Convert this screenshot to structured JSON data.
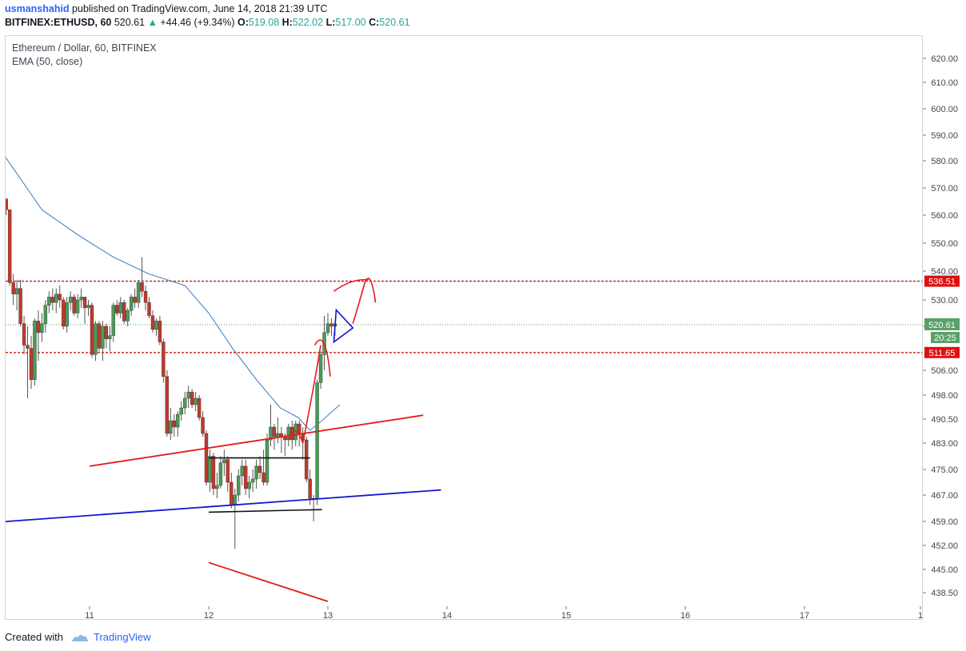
{
  "header": {
    "author": "usmanshahid",
    "published_text": " published on TradingView.com, June 14, 2018 21:39 UTC",
    "symbol": "BITFINEX:ETHUSD, 60",
    "last": "520.61",
    "change": "+44.46 (+9.34%)",
    "open_label": "O:",
    "open": "519.08",
    "high_label": "H:",
    "high": "522.02",
    "low_label": "L:",
    "low": "517.00",
    "close_label": "C:",
    "close": "520.61"
  },
  "legend": {
    "title": "Ethereum / Dollar, 60, BITFINEX",
    "indicator": "EMA (50, close)"
  },
  "footer": {
    "created_with": "Created with",
    "brand": "TradingView"
  },
  "colors": {
    "up": "#4a9a58",
    "down": "#c0392b",
    "ema": "#4a86c5",
    "level": "#e01010",
    "blue_line": "#1515d0",
    "annotation_red": "#e51b1b"
  },
  "chart_data": {
    "type": "candlestick",
    "title": "Ethereum / Dollar, 60, BITFINEX",
    "x_ticks": [
      "11",
      "12",
      "13",
      "14",
      "15",
      "16",
      "17",
      "1"
    ],
    "y_ticks": [
      "620.00",
      "610.00",
      "600.00",
      "590.00",
      "580.00",
      "570.00",
      "560.00",
      "550.00",
      "540.00",
      "530.00",
      "520.00",
      "506.00",
      "498.00",
      "490.50",
      "483.00",
      "475.00",
      "467.00",
      "459.00",
      "452.00",
      "445.00",
      "438.50"
    ],
    "price_range": [
      434,
      626
    ],
    "horizontal_levels": [
      {
        "label": "536.51",
        "value": 536.51
      },
      {
        "label": "511.65",
        "value": 511.65
      }
    ],
    "current_price": {
      "label": "520.61",
      "value": 520.61,
      "countdown": "20:25"
    },
    "candles": [
      [
        10.0,
        570,
        573,
        557,
        560
      ],
      [
        10.03,
        560,
        563,
        557,
        562
      ],
      [
        10.06,
        562,
        567,
        560,
        566
      ],
      [
        10.09,
        566,
        567,
        560,
        563
      ],
      [
        10.12,
        563,
        567,
        559,
        566
      ],
      [
        10.15,
        566,
        568,
        560,
        563
      ],
      [
        10.18,
        563,
        571,
        561,
        569
      ],
      [
        10.21,
        569,
        570,
        565,
        567
      ],
      [
        10.24,
        567,
        569,
        564,
        565
      ],
      [
        10.27,
        565,
        568,
        562,
        566
      ],
      [
        10.3,
        566,
        566,
        560,
        562
      ],
      [
        10.33,
        562,
        562,
        535,
        536
      ],
      [
        10.36,
        536,
        539,
        528,
        532
      ],
      [
        10.39,
        532,
        537,
        526,
        534
      ],
      [
        10.42,
        534,
        537,
        520,
        521
      ],
      [
        10.45,
        521,
        524,
        511,
        514
      ],
      [
        10.48,
        514,
        520,
        497,
        513
      ],
      [
        10.51,
        513,
        517,
        500,
        503
      ],
      [
        10.54,
        503,
        523,
        501,
        522
      ],
      [
        10.57,
        522,
        526,
        509,
        518
      ],
      [
        10.6,
        518,
        525,
        515,
        521
      ],
      [
        10.63,
        521,
        530,
        518,
        528
      ],
      [
        10.66,
        528,
        533,
        525,
        531
      ],
      [
        10.69,
        531,
        534,
        526,
        529
      ],
      [
        10.72,
        529,
        534,
        525,
        532
      ],
      [
        10.75,
        532,
        535,
        527,
        530
      ],
      [
        10.78,
        530,
        531,
        519,
        520
      ],
      [
        10.81,
        520,
        531,
        518,
        529
      ],
      [
        10.84,
        529,
        533,
        526,
        531
      ],
      [
        10.87,
        531,
        532,
        524,
        525
      ],
      [
        10.9,
        525,
        532,
        523,
        530
      ],
      [
        10.93,
        530,
        534,
        527,
        531
      ],
      [
        10.96,
        531,
        531,
        521,
        527
      ],
      [
        10.99,
        527,
        530,
        524,
        528
      ],
      [
        11.02,
        528,
        529,
        510,
        511
      ],
      [
        11.05,
        511,
        522,
        509,
        521
      ],
      [
        11.08,
        521,
        522,
        512,
        513
      ],
      [
        11.11,
        513,
        522,
        509,
        520
      ],
      [
        11.14,
        520,
        521,
        513,
        516
      ],
      [
        11.17,
        516,
        520,
        512,
        517
      ],
      [
        11.2,
        517,
        529,
        515,
        528
      ],
      [
        11.23,
        528,
        530,
        524,
        525
      ],
      [
        11.26,
        525,
        531,
        523,
        529
      ],
      [
        11.29,
        529,
        530,
        521,
        522
      ],
      [
        11.32,
        522,
        527,
        520,
        526
      ],
      [
        11.35,
        526,
        532,
        524,
        531
      ],
      [
        11.38,
        531,
        534,
        527,
        529
      ],
      [
        11.41,
        529,
        537,
        527,
        536
      ],
      [
        11.44,
        536,
        545,
        531,
        533
      ],
      [
        11.47,
        533,
        535,
        526,
        529
      ],
      [
        11.5,
        529,
        531,
        523,
        524
      ],
      [
        11.53,
        524,
        526,
        518,
        519
      ],
      [
        11.56,
        519,
        523,
        517,
        522
      ],
      [
        11.59,
        522,
        524,
        514,
        515
      ],
      [
        11.62,
        515,
        516,
        502,
        504
      ],
      [
        11.65,
        504,
        506,
        485,
        486
      ],
      [
        11.68,
        486,
        494,
        484,
        490
      ],
      [
        11.71,
        490,
        492,
        485,
        488
      ],
      [
        11.74,
        488,
        493,
        485,
        492
      ],
      [
        11.77,
        492,
        496,
        490,
        494
      ],
      [
        11.8,
        494,
        499,
        492,
        497
      ],
      [
        11.83,
        497,
        501,
        494,
        499
      ],
      [
        11.86,
        499,
        500,
        494,
        495
      ],
      [
        11.89,
        495,
        499,
        493,
        497
      ],
      [
        11.92,
        497,
        498,
        490,
        491
      ],
      [
        11.95,
        491,
        493,
        485,
        486
      ],
      [
        11.98,
        486,
        487,
        470,
        471
      ],
      [
        12.01,
        471,
        481,
        468,
        479
      ],
      [
        12.04,
        479,
        480,
        467,
        469
      ],
      [
        12.07,
        469,
        474,
        466,
        470
      ],
      [
        12.1,
        470,
        479,
        469,
        477
      ],
      [
        12.13,
        477,
        481,
        473,
        478
      ],
      [
        12.16,
        478,
        479,
        468,
        471
      ],
      [
        12.19,
        471,
        474,
        463,
        464
      ],
      [
        12.22,
        464,
        469,
        451,
        467
      ],
      [
        12.25,
        467,
        475,
        465,
        473
      ],
      [
        12.28,
        473,
        478,
        470,
        476
      ],
      [
        12.31,
        476,
        478,
        467,
        469
      ],
      [
        12.34,
        469,
        473,
        466,
        471
      ],
      [
        12.37,
        471,
        475,
        468,
        472
      ],
      [
        12.4,
        472,
        478,
        469,
        476
      ],
      [
        12.43,
        476,
        479,
        472,
        474
      ],
      [
        12.46,
        474,
        481,
        470,
        471
      ],
      [
        12.49,
        471,
        486,
        470,
        484
      ],
      [
        12.52,
        484,
        495,
        482,
        488
      ],
      [
        12.55,
        488,
        489,
        481,
        485
      ],
      [
        12.58,
        485,
        491,
        483,
        486
      ],
      [
        12.61,
        486,
        488,
        480,
        485
      ],
      [
        12.64,
        485,
        486,
        479,
        484
      ],
      [
        12.67,
        484,
        489,
        482,
        488
      ],
      [
        12.7,
        488,
        490,
        481,
        484
      ],
      [
        12.73,
        484,
        490,
        482,
        489
      ],
      [
        12.76,
        489,
        490,
        482,
        486
      ],
      [
        12.79,
        486,
        488,
        478,
        484
      ],
      [
        12.82,
        484,
        485,
        471,
        472
      ],
      [
        12.85,
        472,
        475,
        464,
        466
      ],
      [
        12.88,
        466,
        467,
        459,
        466
      ],
      [
        12.91,
        466,
        503,
        464,
        502
      ],
      [
        12.94,
        502,
        512,
        500,
        511
      ],
      [
        12.97,
        511,
        524,
        506,
        518
      ],
      [
        13.0,
        518,
        525,
        517,
        521
      ],
      [
        13.03,
        521,
        523,
        517,
        520
      ],
      [
        13.06,
        520,
        522,
        517,
        521
      ]
    ],
    "ema_points": [
      [
        10.0,
        593
      ],
      [
        10.3,
        581
      ],
      [
        10.6,
        562
      ],
      [
        10.9,
        553
      ],
      [
        11.2,
        545
      ],
      [
        11.5,
        539
      ],
      [
        11.8,
        535
      ],
      [
        12.0,
        525
      ],
      [
        12.2,
        513
      ],
      [
        12.4,
        503
      ],
      [
        12.6,
        494
      ],
      [
        12.75,
        491
      ],
      [
        12.85,
        487
      ],
      [
        12.95,
        490
      ],
      [
        13.1,
        495
      ]
    ],
    "drawings": {
      "blue_trendline": [
        [
          9.95,
          458.1
        ],
        [
          13.95,
          468.6
        ]
      ],
      "red_upper_line": [
        [
          11.0,
          476.0
        ],
        [
          13.8,
          491.7
        ]
      ],
      "red_lower_line": [
        [
          12.0,
          447.0
        ],
        [
          13.0,
          436.0
        ]
      ],
      "black_resistance": [
        [
          12.0,
          478.5
        ],
        [
          12.85,
          478.5
        ]
      ],
      "black_support": [
        [
          12.0,
          461.8
        ],
        [
          12.95,
          462.6
        ]
      ],
      "blue_triangle": [
        [
          13.07,
          526.2
        ],
        [
          13.21,
          519.5
        ],
        [
          13.05,
          515.0
        ]
      ]
    }
  }
}
